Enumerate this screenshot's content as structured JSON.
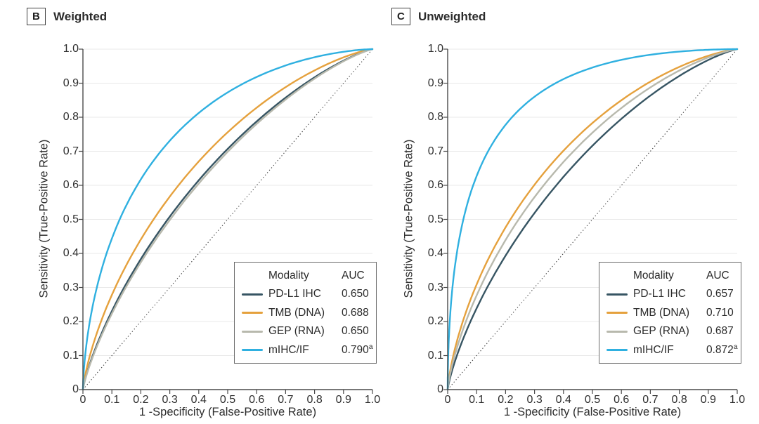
{
  "figure": {
    "background": "#ffffff"
  },
  "chart_data": [
    {
      "type": "line",
      "subtype": "roc-curve",
      "panel": "B",
      "title": "Weighted",
      "xlabel": "1 -Specificity (False-Positive Rate)",
      "ylabel": "Sensitivity (True-Positive Rate)",
      "xlim": [
        0,
        1
      ],
      "ylim": [
        0,
        1
      ],
      "xticks": [
        "0",
        "0.1",
        "0.2",
        "0.3",
        "0.4",
        "0.5",
        "0.6",
        "0.7",
        "0.8",
        "0.9",
        "1.0"
      ],
      "yticks": [
        "0",
        "0.1",
        "0.2",
        "0.3",
        "0.4",
        "0.5",
        "0.6",
        "0.7",
        "0.8",
        "0.9",
        "1.0"
      ],
      "grid": "horizontal",
      "gridline_color": "#e9e9e9",
      "diagonal_reference_line": true,
      "legend": {
        "position": "bottom-right",
        "header": [
          "Modality",
          "AUC"
        ]
      },
      "x_points": [
        0,
        0.02,
        0.05,
        0.1,
        0.2,
        0.3,
        0.4,
        0.5,
        0.6,
        0.7,
        0.8,
        0.9,
        1
      ],
      "series": [
        {
          "name": "PD-L1 IHC",
          "auc": 0.65,
          "auc_label": "0.650",
          "color": "#375563",
          "y_points": [
            0,
            0.066,
            0.136,
            0.231,
            0.383,
            0.508,
            0.615,
            0.707,
            0.788,
            0.858,
            0.917,
            0.966,
            1
          ]
        },
        {
          "name": "TMB (DNA)",
          "auc": 0.688,
          "auc_label": "0.688",
          "color": "#e5a13d",
          "y_points": [
            0,
            0.087,
            0.171,
            0.278,
            0.441,
            0.567,
            0.67,
            0.756,
            0.828,
            0.888,
            0.938,
            0.976,
            1
          ]
        },
        {
          "name": "GEP (RNA)",
          "auc": 0.65,
          "auc_label": "0.650",
          "color": "#b8b9ad",
          "y_points": [
            0,
            0.066,
            0.136,
            0.231,
            0.383,
            0.508,
            0.615,
            0.707,
            0.788,
            0.858,
            0.917,
            0.966,
            1
          ]
        },
        {
          "name": "mIHC/IF",
          "auc": 0.79,
          "auc_label": "0.790",
          "auc_footnote": "a",
          "color": "#2fb0e0",
          "y_points": [
            0,
            0.181,
            0.307,
            0.444,
            0.617,
            0.731,
            0.813,
            0.873,
            0.918,
            0.952,
            0.976,
            0.992,
            1
          ]
        }
      ]
    },
    {
      "type": "line",
      "subtype": "roc-curve",
      "panel": "C",
      "title": "Unweighted",
      "xlabel": "1 -Specificity (False-Positive Rate)",
      "ylabel": "Sensitivity (True-Positive Rate)",
      "xlim": [
        0,
        1
      ],
      "ylim": [
        0,
        1
      ],
      "xticks": [
        "0",
        "0.1",
        "0.2",
        "0.3",
        "0.4",
        "0.5",
        "0.6",
        "0.7",
        "0.8",
        "0.9",
        "1.0"
      ],
      "yticks": [
        "0",
        "0.1",
        "0.2",
        "0.3",
        "0.4",
        "0.5",
        "0.6",
        "0.7",
        "0.8",
        "0.9",
        "1.0"
      ],
      "grid": "horizontal",
      "gridline_color": "#e9e9e9",
      "diagonal_reference_line": true,
      "legend": {
        "position": "bottom-right",
        "header": [
          "Modality",
          "AUC"
        ]
      },
      "x_points": [
        0,
        0.02,
        0.05,
        0.1,
        0.2,
        0.3,
        0.4,
        0.5,
        0.6,
        0.7,
        0.8,
        0.9,
        1
      ],
      "series": [
        {
          "name": "PD-L1 IHC",
          "auc": 0.657,
          "auc_label": "0.657",
          "color": "#375563",
          "y_points": [
            0,
            0.069,
            0.142,
            0.239,
            0.394,
            0.519,
            0.625,
            0.716,
            0.795,
            0.864,
            0.921,
            0.968,
            1
          ]
        },
        {
          "name": "TMB (DNA)",
          "auc": 0.71,
          "auc_label": "0.710",
          "color": "#e5a13d",
          "y_points": [
            0,
            0.102,
            0.194,
            0.309,
            0.477,
            0.602,
            0.702,
            0.783,
            0.85,
            0.904,
            0.948,
            0.981,
            1
          ]
        },
        {
          "name": "GEP (RNA)",
          "auc": 0.687,
          "auc_label": "0.687",
          "color": "#b8b9ad",
          "y_points": [
            0,
            0.086,
            0.17,
            0.277,
            0.44,
            0.566,
            0.669,
            0.755,
            0.827,
            0.888,
            0.937,
            0.976,
            1
          ]
        },
        {
          "name": "mIHC/IF",
          "auc": 0.872,
          "auc_label": "0.872",
          "auc_footnote": "a",
          "color": "#2fb0e0",
          "y_points": [
            0,
            0.327,
            0.485,
            0.627,
            0.778,
            0.86,
            0.912,
            0.946,
            0.969,
            0.983,
            0.993,
            0.998,
            1
          ]
        }
      ]
    }
  ]
}
